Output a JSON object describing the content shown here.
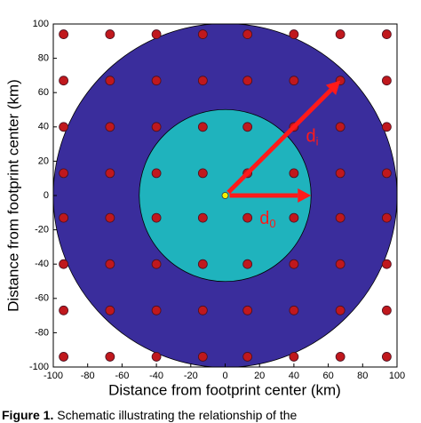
{
  "chart_data": {
    "type": "scatter",
    "xlabel": "Distance from footprint center (km)",
    "ylabel": "Distance from footprint center (km)",
    "xlim": [
      -100,
      100
    ],
    "ylim": [
      -100,
      100
    ],
    "xticks": [
      -100,
      -80,
      -60,
      -40,
      -20,
      0,
      20,
      40,
      60,
      80,
      100
    ],
    "yticks": [
      -100,
      -80,
      -60,
      -40,
      -20,
      0,
      20,
      40,
      60,
      80,
      100
    ],
    "circles": [
      {
        "r": 100,
        "color": "#3a2d9c"
      },
      {
        "r": 50,
        "color": "#1fb3bd"
      }
    ],
    "series": [
      {
        "color": "#c0181d",
        "x": [
          -94,
          -67,
          -40,
          -13,
          13,
          40,
          67,
          94,
          -94,
          -67,
          -40,
          -13,
          13,
          40,
          67,
          94,
          -94,
          -67,
          -40,
          -13,
          13,
          40,
          67,
          94,
          -94,
          -67,
          -40,
          -13,
          13,
          40,
          67,
          94,
          -94,
          -67,
          -40,
          -13,
          13,
          40,
          67,
          94,
          -94,
          -67,
          -40,
          -13,
          13,
          40,
          67,
          94,
          -94,
          -67,
          -40,
          -13,
          13,
          40,
          67,
          94,
          -94,
          -67,
          -40,
          -13,
          13,
          40,
          67,
          94
        ],
        "y": [
          94,
          94,
          94,
          94,
          94,
          94,
          94,
          94,
          67,
          67,
          67,
          67,
          67,
          67,
          67,
          67,
          40,
          40,
          40,
          40,
          40,
          40,
          40,
          40,
          13,
          13,
          13,
          13,
          13,
          13,
          13,
          13,
          -13,
          -13,
          -13,
          -13,
          -13,
          -13,
          -13,
          -13,
          -40,
          -40,
          -40,
          -40,
          -40,
          -40,
          -40,
          -40,
          -67,
          -67,
          -67,
          -67,
          -67,
          -67,
          -67,
          -67,
          -94,
          -94,
          -94,
          -94,
          -94,
          -94,
          -94,
          -94
        ]
      },
      {
        "color": "#f2f200",
        "x": [
          0
        ],
        "y": [
          0
        ]
      }
    ],
    "arrows": [
      {
        "to": [
          67,
          67
        ],
        "color": "#ff1a1a",
        "label": "d",
        "sub": "i",
        "label_at": [
          47,
          34
        ]
      },
      {
        "to": [
          50,
          0
        ],
        "color": "#ff1a1a",
        "label": "d",
        "sub": "0",
        "label_at": [
          20,
          -14
        ]
      }
    ],
    "caption": {
      "bold": "Figure 1.",
      "text": "Schematic illustrating the relationship of the"
    }
  }
}
